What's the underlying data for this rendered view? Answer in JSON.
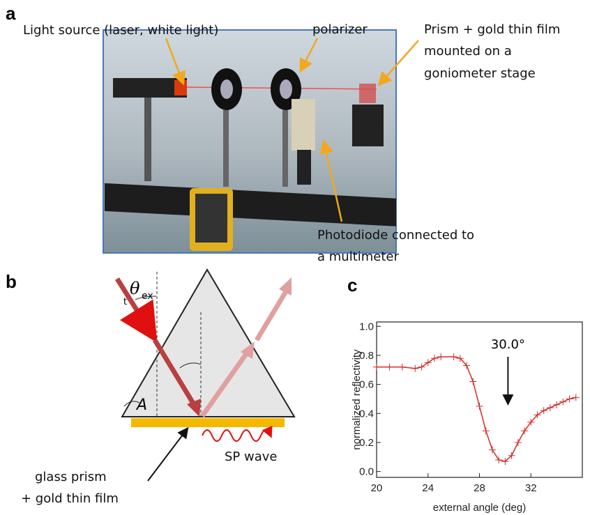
{
  "figure": {
    "panel_a": {
      "label": "a",
      "light_source": "Light source (laser, white light)",
      "polarizer": "polarizer",
      "prism": [
        "Prism + gold thin film",
        "mounted on a",
        "goniometer stage"
      ],
      "photodiode": [
        "Photodiode connected to",
        "a multimeter"
      ]
    },
    "panel_b": {
      "label": "b",
      "theta": "θ",
      "theta_sub": "ex",
      "t": "t",
      "angle": "A",
      "prism_label": [
        "glass prism",
        "+ gold thin film"
      ],
      "wave_label": "SP wave"
    }
  },
  "chart_data": {
    "type": "line",
    "label": "c",
    "xlabel": "external angle (deg)",
    "ylabel": "normalized reflectivity",
    "annotation": "30.0°",
    "x": [
      20,
      21,
      22,
      23,
      23.5,
      24,
      24.5,
      25,
      26,
      26.5,
      27,
      27.5,
      28,
      28.5,
      29,
      29.5,
      30,
      30.5,
      31,
      31.5,
      32,
      32.5,
      33,
      33.5,
      34,
      34.5,
      35,
      35.5
    ],
    "series": [
      {
        "color": "#d42a2a",
        "marker": "+",
        "values": [
          0.72,
          0.72,
          0.72,
          0.71,
          0.72,
          0.75,
          0.78,
          0.79,
          0.79,
          0.78,
          0.73,
          0.62,
          0.45,
          0.28,
          0.15,
          0.08,
          0.07,
          0.11,
          0.2,
          0.28,
          0.34,
          0.39,
          0.42,
          0.44,
          0.46,
          0.48,
          0.5,
          0.51
        ]
      }
    ],
    "xlim": [
      20,
      36
    ],
    "ylim": [
      -0.04,
      1.03
    ],
    "xticks": [
      20,
      24,
      28,
      32
    ],
    "yticks": [
      {
        "value": 0,
        "label": "0.0"
      },
      0.2,
      0.4,
      0.6,
      0.8,
      {
        "value": 1,
        "label": "1.0"
      }
    ]
  }
}
